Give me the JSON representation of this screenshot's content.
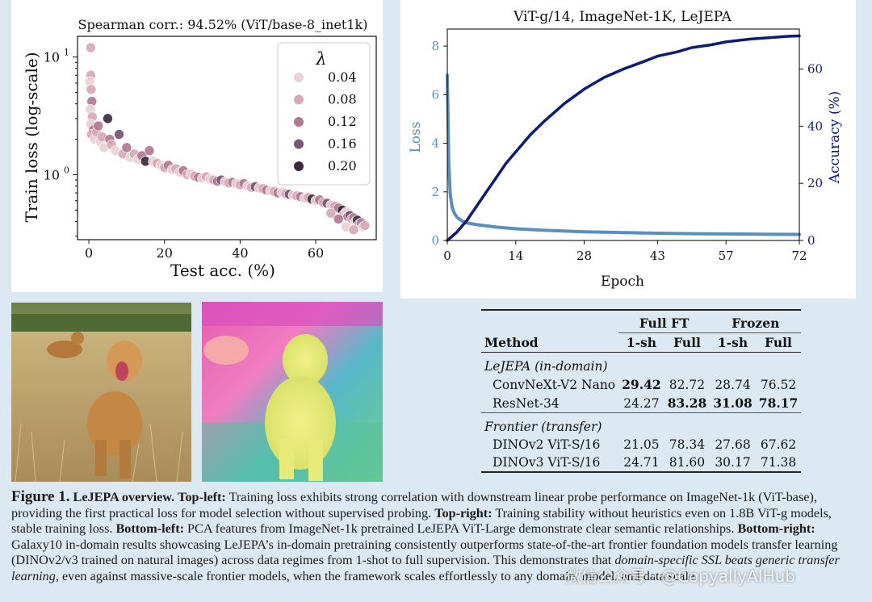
{
  "chart_data": [
    {
      "type": "scatter",
      "title": "Spearman corr.: 94.52% (ViT/base-8_inet1k)",
      "xlabel": "Test acc. (%)",
      "ylabel": "Train loss (log-scale)",
      "xlim": [
        -3,
        76
      ],
      "ylim_log": [
        0.28,
        15
      ],
      "xticks": [
        "0",
        "20",
        "40",
        "60"
      ],
      "yticks": [
        "10^0",
        "10^1"
      ],
      "legend_title": "λ",
      "legend": [
        {
          "label": "0.04",
          "color": "#ead1d6"
        },
        {
          "label": "0.08",
          "color": "#d9a8b6"
        },
        {
          "label": "0.12",
          "color": "#b07891"
        },
        {
          "label": "0.16",
          "color": "#7a5470"
        },
        {
          "label": "0.20",
          "color": "#3a2a3c"
        }
      ],
      "points": [
        {
          "x": 0.5,
          "y": 12.0,
          "s": 1
        },
        {
          "x": 0.5,
          "y": 7.0,
          "s": 1
        },
        {
          "x": 0.3,
          "y": 6.2,
          "s": 0
        },
        {
          "x": 0.6,
          "y": 5.3,
          "s": 1
        },
        {
          "x": 0.8,
          "y": 4.2,
          "s": 2
        },
        {
          "x": 0.4,
          "y": 3.6,
          "s": 0
        },
        {
          "x": 0.9,
          "y": 3.1,
          "s": 1
        },
        {
          "x": 0.5,
          "y": 2.7,
          "s": 0
        },
        {
          "x": 1.2,
          "y": 2.4,
          "s": 2
        },
        {
          "x": 0.7,
          "y": 2.2,
          "s": 1
        },
        {
          "x": 1.5,
          "y": 2.0,
          "s": 0
        },
        {
          "x": 2.0,
          "y": 2.3,
          "s": 1
        },
        {
          "x": 2.5,
          "y": 2.6,
          "s": 2
        },
        {
          "x": 3.0,
          "y": 1.9,
          "s": 0
        },
        {
          "x": 3.5,
          "y": 2.1,
          "s": 1
        },
        {
          "x": 4.0,
          "y": 1.7,
          "s": 0
        },
        {
          "x": 5.0,
          "y": 3.0,
          "s": 4
        },
        {
          "x": 5.5,
          "y": 2.0,
          "s": 2
        },
        {
          "x": 6.0,
          "y": 1.8,
          "s": 1
        },
        {
          "x": 7.0,
          "y": 1.6,
          "s": 0
        },
        {
          "x": 8.0,
          "y": 2.2,
          "s": 3
        },
        {
          "x": 9.0,
          "y": 1.5,
          "s": 1
        },
        {
          "x": 10.0,
          "y": 1.7,
          "s": 2
        },
        {
          "x": 11.0,
          "y": 1.4,
          "s": 0
        },
        {
          "x": 12.0,
          "y": 1.5,
          "s": 1
        },
        {
          "x": 13.0,
          "y": 1.35,
          "s": 0
        },
        {
          "x": 14.0,
          "y": 1.45,
          "s": 2
        },
        {
          "x": 15.0,
          "y": 1.3,
          "s": 4
        },
        {
          "x": 16.0,
          "y": 1.6,
          "s": 2
        },
        {
          "x": 17.0,
          "y": 1.3,
          "s": 0
        },
        {
          "x": 18.0,
          "y": 1.25,
          "s": 1
        },
        {
          "x": 19.0,
          "y": 1.2,
          "s": 0
        },
        {
          "x": 20.0,
          "y": 1.15,
          "s": 1
        },
        {
          "x": 21.0,
          "y": 1.2,
          "s": 2
        },
        {
          "x": 22.0,
          "y": 1.1,
          "s": 0
        },
        {
          "x": 23.0,
          "y": 1.12,
          "s": 1
        },
        {
          "x": 24.0,
          "y": 1.05,
          "s": 0
        },
        {
          "x": 25.0,
          "y": 1.08,
          "s": 2
        },
        {
          "x": 26.0,
          "y": 1.0,
          "s": 1
        },
        {
          "x": 27.0,
          "y": 1.02,
          "s": 0
        },
        {
          "x": 28.0,
          "y": 0.97,
          "s": 1
        },
        {
          "x": 29.0,
          "y": 0.95,
          "s": 2
        },
        {
          "x": 30.0,
          "y": 0.93,
          "s": 0
        },
        {
          "x": 31.0,
          "y": 0.96,
          "s": 1
        },
        {
          "x": 32.0,
          "y": 0.92,
          "s": 0
        },
        {
          "x": 33.0,
          "y": 0.9,
          "s": 1
        },
        {
          "x": 34.0,
          "y": 0.88,
          "s": 2
        },
        {
          "x": 35.0,
          "y": 0.9,
          "s": 3
        },
        {
          "x": 36.0,
          "y": 0.87,
          "s": 0
        },
        {
          "x": 37.0,
          "y": 0.85,
          "s": 1
        },
        {
          "x": 38.0,
          "y": 0.86,
          "s": 2
        },
        {
          "x": 39.0,
          "y": 0.84,
          "s": 0
        },
        {
          "x": 40.0,
          "y": 0.82,
          "s": 1
        },
        {
          "x": 41.0,
          "y": 0.84,
          "s": 2
        },
        {
          "x": 42.0,
          "y": 0.8,
          "s": 0
        },
        {
          "x": 43.0,
          "y": 0.78,
          "s": 1
        },
        {
          "x": 44.0,
          "y": 0.79,
          "s": 3
        },
        {
          "x": 45.0,
          "y": 0.77,
          "s": 0
        },
        {
          "x": 46.0,
          "y": 0.76,
          "s": 1
        },
        {
          "x": 47.0,
          "y": 0.74,
          "s": 2
        },
        {
          "x": 48.0,
          "y": 0.73,
          "s": 0
        },
        {
          "x": 49.0,
          "y": 0.72,
          "s": 1
        },
        {
          "x": 50.0,
          "y": 0.7,
          "s": 2
        },
        {
          "x": 51.0,
          "y": 0.71,
          "s": 0
        },
        {
          "x": 52.0,
          "y": 0.69,
          "s": 1
        },
        {
          "x": 53.0,
          "y": 0.68,
          "s": 3
        },
        {
          "x": 54.0,
          "y": 0.67,
          "s": 0
        },
        {
          "x": 55.0,
          "y": 0.66,
          "s": 1
        },
        {
          "x": 56.0,
          "y": 0.65,
          "s": 2
        },
        {
          "x": 57.0,
          "y": 0.63,
          "s": 0
        },
        {
          "x": 58.0,
          "y": 0.64,
          "s": 1
        },
        {
          "x": 59.0,
          "y": 0.62,
          "s": 4
        },
        {
          "x": 60.0,
          "y": 0.6,
          "s": 0
        },
        {
          "x": 61.0,
          "y": 0.61,
          "s": 2
        },
        {
          "x": 62.0,
          "y": 0.58,
          "s": 1
        },
        {
          "x": 63.0,
          "y": 0.57,
          "s": 3
        },
        {
          "x": 64.0,
          "y": 0.55,
          "s": 0
        },
        {
          "x": 65.0,
          "y": 0.54,
          "s": 1
        },
        {
          "x": 66.0,
          "y": 0.52,
          "s": 2
        },
        {
          "x": 67.0,
          "y": 0.5,
          "s": 4
        },
        {
          "x": 67.5,
          "y": 0.46,
          "s": 1
        },
        {
          "x": 68.0,
          "y": 0.48,
          "s": 0
        },
        {
          "x": 68.5,
          "y": 0.44,
          "s": 2
        },
        {
          "x": 69.0,
          "y": 0.45,
          "s": 3
        },
        {
          "x": 69.5,
          "y": 0.42,
          "s": 1
        },
        {
          "x": 70.0,
          "y": 0.43,
          "s": 2
        },
        {
          "x": 70.5,
          "y": 0.4,
          "s": 0
        },
        {
          "x": 71.0,
          "y": 0.41,
          "s": 4
        },
        {
          "x": 71.5,
          "y": 0.38,
          "s": 1
        },
        {
          "x": 72.0,
          "y": 0.39,
          "s": 2
        },
        {
          "x": 72.5,
          "y": 0.36,
          "s": 0
        },
        {
          "x": 73.0,
          "y": 0.37,
          "s": 1
        },
        {
          "x": 66.0,
          "y": 0.42,
          "s": 2
        },
        {
          "x": 68.0,
          "y": 0.36,
          "s": 0
        },
        {
          "x": 70.0,
          "y": 0.34,
          "s": 1
        },
        {
          "x": 64.0,
          "y": 0.47,
          "s": 1
        }
      ]
    },
    {
      "type": "line",
      "title": "ViT-g/14, ImageNet-1K, LeJEPA",
      "xlabel": "Epoch",
      "ylabel_left": "Loss",
      "ylabel_right": "Accuracy (%)",
      "xlim": [
        0,
        72
      ],
      "ylim_left": [
        0,
        8.7
      ],
      "ylim_right": [
        0,
        74
      ],
      "xticks": [
        0,
        14,
        28,
        43,
        57,
        72
      ],
      "yticks_left": [
        0,
        2,
        4,
        6,
        8
      ],
      "yticks_right": [
        0,
        20,
        40,
        60
      ],
      "colors": {
        "loss": "#5a8fbd",
        "accuracy": "#0d1b73"
      },
      "series": [
        {
          "name": "Loss",
          "axis": "left",
          "x": [
            0,
            0.3,
            0.6,
            1,
            1.5,
            2,
            3,
            4,
            6,
            8,
            10,
            14,
            20,
            28,
            35,
            43,
            50,
            57,
            65,
            72
          ],
          "values": [
            6.8,
            3.2,
            1.9,
            1.35,
            1.1,
            0.95,
            0.8,
            0.72,
            0.65,
            0.6,
            0.55,
            0.48,
            0.42,
            0.36,
            0.33,
            0.3,
            0.28,
            0.27,
            0.26,
            0.25
          ]
        },
        {
          "name": "Accuracy",
          "axis": "right",
          "x": [
            0,
            2,
            4,
            6,
            8,
            10,
            12,
            14,
            17,
            20,
            24,
            28,
            32,
            36,
            40,
            43,
            47,
            50,
            54,
            57,
            62,
            66,
            70,
            72
          ],
          "values": [
            0,
            3,
            7,
            12,
            17,
            22,
            27,
            31,
            37,
            42,
            48,
            53,
            57,
            60,
            62.5,
            64.5,
            66,
            67.5,
            68.5,
            69.5,
            70.5,
            71,
            71.5,
            71.6
          ]
        }
      ]
    }
  ],
  "table": {
    "header_groups": [
      "Full FT",
      "Frozen"
    ],
    "method_header": "Method",
    "sub_headers": [
      "1-sh",
      "Full",
      "1-sh",
      "Full"
    ],
    "sections": [
      {
        "title": "LeJEPA (in-domain)",
        "rows": [
          {
            "method": "ConvNeXt-V2 Nano",
            "values": [
              "29.42",
              "82.72",
              "28.74",
              "76.52"
            ],
            "bold": [
              true,
              false,
              false,
              false
            ]
          },
          {
            "method": "ResNet-34",
            "values": [
              "24.27",
              "83.28",
              "31.08",
              "78.17"
            ],
            "bold": [
              false,
              true,
              true,
              true
            ]
          }
        ]
      },
      {
        "title": "Frontier (transfer)",
        "rows": [
          {
            "method": "DINOv2 ViT-S/16",
            "values": [
              "21.05",
              "78.34",
              "27.68",
              "67.62"
            ],
            "bold": [
              false,
              false,
              false,
              false
            ]
          },
          {
            "method": "DINOv3 ViT-S/16",
            "values": [
              "24.71",
              "81.60",
              "30.17",
              "71.38"
            ],
            "bold": [
              false,
              false,
              false,
              false
            ]
          }
        ]
      }
    ]
  },
  "caption": {
    "figure_label": "Figure 1.",
    "overview": "LeJEPA overview.",
    "tl_label": "Top-left:",
    "tl_text": " Training loss exhibits strong correlation with downstream linear probe performance on ImageNet-1k (ViT-base), providing the first practical loss for model selection without supervised probing. ",
    "tr_label": "Top-right:",
    "tr_text": " Training stability without heuristics even on 1.8B ViT-g models, stable training loss. ",
    "bl_label": "Bottom-left:",
    "bl_text": " PCA features from ImageNet-1k pretrained LeJEPA ViT-Large demonstrate clear semantic relationships. ",
    "br_label": "Bottom-right:",
    "br_text": " Galaxy10 in-domain results showcasing LeJEPA’s in-domain pretraining consistently outperforms state-of-the-art frontier foundation models transfer learning (DINOv2/v3 trained on natural images) across data regimes from 1-shot to full supervision. This demonstrates that ",
    "emph": "domain-specific SSL beats generic transfer learning",
    "end_text": ", even against massive-scale frontier models, when the framework scales effortlessly to any domain, model, and data scale."
  },
  "watermark": "微信公众号 · @CopyallyAIHub"
}
